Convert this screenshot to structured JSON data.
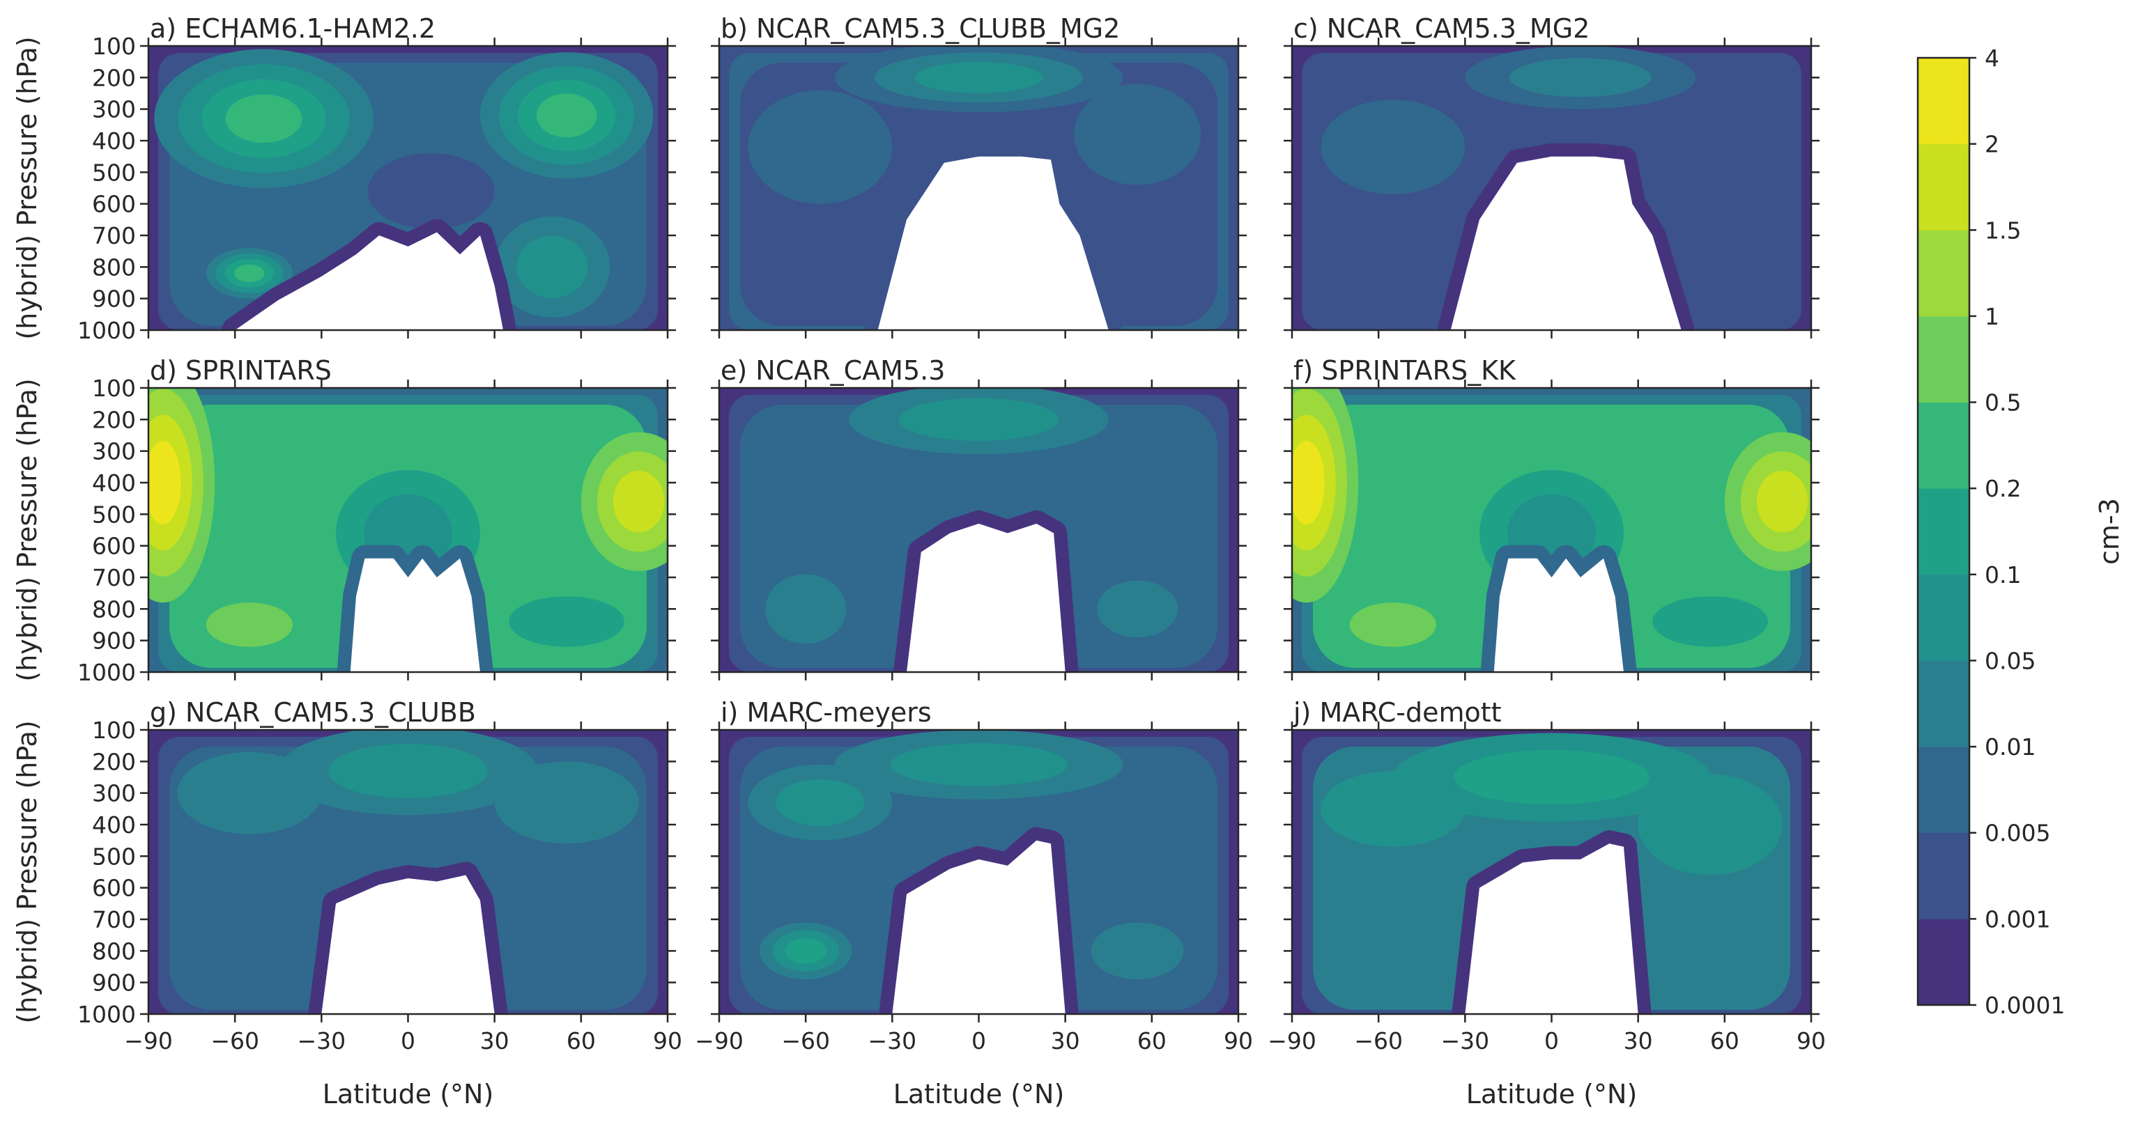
{
  "chart_data": {
    "type": "contour",
    "layout": {
      "rows": 3,
      "cols": 3
    },
    "x": {
      "label": "Latitude (°N)",
      "range": [
        -90,
        90
      ],
      "ticks": [
        -90,
        -60,
        -30,
        0,
        30,
        60,
        90
      ],
      "tick_labels": [
        "−90",
        "−60",
        "−30",
        "0",
        "30",
        "60",
        "90"
      ]
    },
    "y": {
      "label": "(hybrid) Pressure (hPa)",
      "range": [
        1000,
        100
      ],
      "ticks": [
        100,
        200,
        300,
        400,
        500,
        600,
        700,
        800,
        900,
        1000
      ],
      "tick_labels": [
        "100",
        "200",
        "300",
        "400",
        "500",
        "600",
        "700",
        "800",
        "900",
        "1000"
      ]
    },
    "colorbar": {
      "label": "cm-3",
      "levels": [
        "0.0001",
        "0.001",
        "0.005",
        "0.01",
        "0.05",
        "0.1",
        "0.2",
        "0.5",
        "1",
        "1.5",
        "2",
        "4"
      ],
      "colors": [
        "#46337e",
        "#3b528b",
        "#31688e",
        "#2a7f8e",
        "#21918c",
        "#1fa188",
        "#35b779",
        "#6ccd5a",
        "#9dd93b",
        "#c8e020",
        "#ede51b"
      ]
    },
    "panels": [
      {
        "title": "a) ECHAM6.1-HAM2.2",
        "low": 0,
        "high": 6,
        "bg": 2,
        "edge_gap": [
          0,
          0
        ],
        "mask": [
          [
            -60,
            1000
          ],
          [
            -45,
            905
          ],
          [
            -30,
            830
          ],
          [
            -18,
            760
          ],
          [
            -10,
            700
          ],
          [
            0,
            735
          ],
          [
            10,
            690
          ],
          [
            18,
            760
          ],
          [
            25,
            700
          ],
          [
            30,
            860
          ],
          [
            33,
            1000
          ]
        ],
        "blobs": [
          {
            "lat": -50,
            "p": 330,
            "rx": 38,
            "ry": 220,
            "level": 6
          },
          {
            "lat": 55,
            "p": 320,
            "rx": 30,
            "ry": 200,
            "level": 6
          },
          {
            "lat": -55,
            "p": 820,
            "rx": 15,
            "ry": 80,
            "level": 6
          },
          {
            "lat": 8,
            "p": 560,
            "rx": 22,
            "ry": 120,
            "level": 1
          },
          {
            "lat": 50,
            "p": 800,
            "rx": 20,
            "ry": 160,
            "level": 4
          }
        ]
      },
      {
        "title": "b) NCAR_CAM5.3_CLUBB_MG2",
        "low": 1,
        "high": 4,
        "bg": 1,
        "edge_gap": [
          0,
          0
        ],
        "mask": [
          [
            -35,
            1000
          ],
          [
            -25,
            650
          ],
          [
            -12,
            470
          ],
          [
            0,
            450
          ],
          [
            15,
            450
          ],
          [
            25,
            460
          ],
          [
            28,
            600
          ],
          [
            35,
            700
          ],
          [
            45,
            1000
          ]
        ],
        "blobs": [
          {
            "lat": 0,
            "p": 200,
            "rx": 50,
            "ry": 110,
            "level": 4
          },
          {
            "lat": -55,
            "p": 420,
            "rx": 25,
            "ry": 180,
            "level": 2
          },
          {
            "lat": 55,
            "p": 380,
            "rx": 22,
            "ry": 160,
            "level": 2
          }
        ]
      },
      {
        "title": "c) NCAR_CAM5.3_MG2",
        "low": 0,
        "high": 3,
        "bg": 1,
        "edge_gap": [
          0,
          0
        ],
        "mask": [
          [
            -35,
            1000
          ],
          [
            -25,
            650
          ],
          [
            -12,
            470
          ],
          [
            0,
            450
          ],
          [
            15,
            450
          ],
          [
            25,
            460
          ],
          [
            28,
            600
          ],
          [
            35,
            700
          ],
          [
            45,
            1000
          ]
        ],
        "blobs": [
          {
            "lat": 10,
            "p": 200,
            "rx": 40,
            "ry": 100,
            "level": 3
          },
          {
            "lat": -55,
            "p": 420,
            "rx": 25,
            "ry": 150,
            "level": 2
          }
        ]
      },
      {
        "title": "d) SPRINTARS",
        "low": 2,
        "high": 10,
        "bg": 6,
        "edge_gap": [
          0,
          0
        ],
        "mask": [
          [
            -20,
            1000
          ],
          [
            -18,
            760
          ],
          [
            -15,
            640
          ],
          [
            -5,
            640
          ],
          [
            0,
            700
          ],
          [
            5,
            640
          ],
          [
            10,
            700
          ],
          [
            18,
            640
          ],
          [
            22,
            760
          ],
          [
            25,
            1000
          ]
        ],
        "blobs": [
          {
            "lat": -85,
            "p": 400,
            "rx": 18,
            "ry": 380,
            "level": 10
          },
          {
            "lat": 80,
            "p": 460,
            "rx": 20,
            "ry": 220,
            "level": 9
          },
          {
            "lat": 0,
            "p": 560,
            "rx": 25,
            "ry": 200,
            "level": 4
          },
          {
            "lat": -55,
            "p": 850,
            "rx": 15,
            "ry": 70,
            "level": 7
          },
          {
            "lat": 55,
            "p": 840,
            "rx": 20,
            "ry": 80,
            "level": 5
          }
        ]
      },
      {
        "title": "e) NCAR_CAM5.3",
        "low": 0,
        "high": 4,
        "bg": 2,
        "edge_gap": [
          0,
          0
        ],
        "mask": [
          [
            -25,
            1000
          ],
          [
            -20,
            620
          ],
          [
            -10,
            560
          ],
          [
            0,
            530
          ],
          [
            10,
            560
          ],
          [
            20,
            530
          ],
          [
            26,
            560
          ],
          [
            30,
            1000
          ]
        ],
        "blobs": [
          {
            "lat": 0,
            "p": 200,
            "rx": 45,
            "ry": 110,
            "level": 4
          },
          {
            "lat": -60,
            "p": 800,
            "rx": 14,
            "ry": 110,
            "level": 3
          },
          {
            "lat": 55,
            "p": 800,
            "rx": 14,
            "ry": 90,
            "level": 3
          }
        ]
      },
      {
        "title": "f) SPRINTARS_KK",
        "low": 2,
        "high": 10,
        "bg": 6,
        "edge_gap": [
          0,
          0
        ],
        "mask": [
          [
            -20,
            1000
          ],
          [
            -18,
            760
          ],
          [
            -15,
            640
          ],
          [
            -5,
            640
          ],
          [
            0,
            700
          ],
          [
            5,
            640
          ],
          [
            10,
            700
          ],
          [
            18,
            640
          ],
          [
            22,
            760
          ],
          [
            25,
            1000
          ]
        ],
        "blobs": [
          {
            "lat": -85,
            "p": 400,
            "rx": 18,
            "ry": 380,
            "level": 10
          },
          {
            "lat": 80,
            "p": 460,
            "rx": 20,
            "ry": 220,
            "level": 9
          },
          {
            "lat": 0,
            "p": 560,
            "rx": 25,
            "ry": 200,
            "level": 4
          },
          {
            "lat": -55,
            "p": 850,
            "rx": 15,
            "ry": 70,
            "level": 7
          },
          {
            "lat": 55,
            "p": 840,
            "rx": 20,
            "ry": 80,
            "level": 5
          }
        ]
      },
      {
        "title": "g) NCAR_CAM5.3_CLUBB",
        "low": 0,
        "high": 4,
        "bg": 2,
        "edge_gap": [
          0,
          0
        ],
        "mask": [
          [
            -30,
            1000
          ],
          [
            -25,
            650
          ],
          [
            -10,
            590
          ],
          [
            0,
            570
          ],
          [
            10,
            580
          ],
          [
            20,
            560
          ],
          [
            25,
            640
          ],
          [
            30,
            1000
          ]
        ],
        "blobs": [
          {
            "lat": 0,
            "p": 230,
            "rx": 45,
            "ry": 140,
            "level": 4
          },
          {
            "lat": -55,
            "p": 300,
            "rx": 25,
            "ry": 130,
            "level": 3
          },
          {
            "lat": 55,
            "p": 330,
            "rx": 25,
            "ry": 130,
            "level": 3
          }
        ]
      },
      {
        "title": "i) MARC-meyers",
        "low": 0,
        "high": 5,
        "bg": 2,
        "edge_gap": [
          0,
          0
        ],
        "mask": [
          [
            -30,
            1000
          ],
          [
            -25,
            620
          ],
          [
            -10,
            540
          ],
          [
            0,
            510
          ],
          [
            10,
            530
          ],
          [
            20,
            450
          ],
          [
            25,
            460
          ],
          [
            30,
            1000
          ]
        ],
        "blobs": [
          {
            "lat": 0,
            "p": 210,
            "rx": 50,
            "ry": 110,
            "level": 4
          },
          {
            "lat": -55,
            "p": 330,
            "rx": 25,
            "ry": 120,
            "level": 4
          },
          {
            "lat": -60,
            "p": 800,
            "rx": 16,
            "ry": 90,
            "level": 5
          },
          {
            "lat": 55,
            "p": 800,
            "rx": 16,
            "ry": 90,
            "level": 3
          }
        ]
      },
      {
        "title": "j) MARC-demott",
        "low": 0,
        "high": 5,
        "bg": 3,
        "edge_gap": [
          0,
          0
        ],
        "mask": [
          [
            -30,
            1000
          ],
          [
            -25,
            600
          ],
          [
            -10,
            520
          ],
          [
            0,
            510
          ],
          [
            10,
            510
          ],
          [
            20,
            460
          ],
          [
            25,
            470
          ],
          [
            30,
            1000
          ]
        ],
        "blobs": [
          {
            "lat": 0,
            "p": 250,
            "rx": 55,
            "ry": 140,
            "level": 5
          },
          {
            "lat": -55,
            "p": 350,
            "rx": 25,
            "ry": 120,
            "level": 4
          },
          {
            "lat": 55,
            "p": 400,
            "rx": 25,
            "ry": 160,
            "level": 4
          }
        ]
      }
    ]
  }
}
